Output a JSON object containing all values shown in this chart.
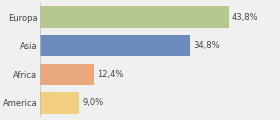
{
  "categories": [
    "Europa",
    "Asia",
    "Africa",
    "America"
  ],
  "values": [
    43.8,
    34.8,
    12.4,
    9.0
  ],
  "labels": [
    "43,8%",
    "34,8%",
    "12,4%",
    "9,0%"
  ],
  "bar_colors": [
    "#b5c98e",
    "#6b8cba",
    "#e8a87c",
    "#f0d080"
  ],
  "background_color": "#f0f0f0",
  "xlim": [
    0,
    55
  ],
  "bar_height": 0.75,
  "label_fontsize": 6,
  "tick_fontsize": 6
}
